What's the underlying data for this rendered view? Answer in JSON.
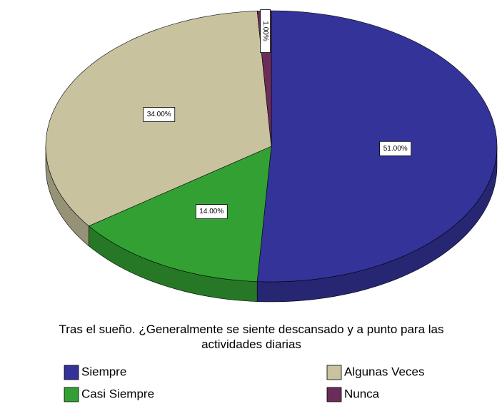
{
  "chart_data": {
    "type": "pie",
    "title": "Tras el sueño. ¿Generalmente se siente descansado y a punto para las actividades diarias",
    "categories": [
      "Siempre",
      "Casi Siempre",
      "Algunas Veces",
      "Nunca"
    ],
    "values": [
      51,
      14,
      34,
      1
    ],
    "value_labels": [
      "51.00%",
      "14.00%",
      "34.00%",
      "1.00%"
    ],
    "colors": [
      "#333399",
      "#33a033",
      "#c8c39e",
      "#6b2c5a"
    ]
  }
}
